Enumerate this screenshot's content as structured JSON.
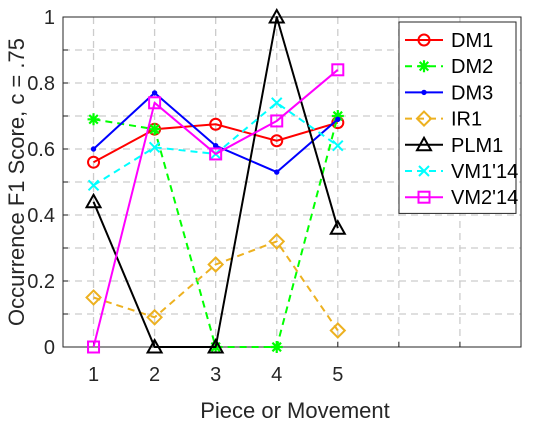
{
  "chart_data": {
    "type": "line",
    "title": "",
    "xlabel": "Piece or Movement",
    "ylabel": "Occurrence F1  Score, c = .75",
    "x": [
      1,
      2,
      3,
      4,
      5
    ],
    "xlim": [
      0.5,
      8
    ],
    "ylim": [
      0,
      1
    ],
    "xticks": [
      "1",
      "2",
      "3",
      "4",
      "5"
    ],
    "yticks": [
      "0",
      "0.2",
      "0.4",
      "0.6",
      "0.8",
      "1"
    ],
    "grid": true,
    "legend_position": "top-right",
    "series": [
      {
        "name": "DM1",
        "values": [
          0.56,
          0.66,
          0.675,
          0.625,
          0.68
        ],
        "color": "#ff0000",
        "dash": "solid",
        "marker": "circle"
      },
      {
        "name": "DM2",
        "values": [
          0.69,
          0.66,
          0.0,
          0.0,
          0.7
        ],
        "color": "#00ff00",
        "dash": "dashed",
        "marker": "asterisk"
      },
      {
        "name": "DM3",
        "values": [
          0.6,
          0.77,
          0.61,
          0.53,
          0.69
        ],
        "color": "#0000ff",
        "dash": "solid",
        "marker": "point"
      },
      {
        "name": "IR1",
        "values": [
          0.15,
          0.09,
          0.25,
          0.32,
          0.05
        ],
        "color": "#edb120",
        "dash": "dashed",
        "marker": "diamond"
      },
      {
        "name": "PLM1",
        "values": [
          0.44,
          0.0,
          0.0,
          1.0,
          0.36
        ],
        "color": "#000000",
        "dash": "solid",
        "marker": "triangle"
      },
      {
        "name": "VM1'14",
        "values": [
          0.49,
          0.605,
          0.585,
          0.74,
          0.61
        ],
        "color": "#00ffff",
        "dash": "dashed",
        "marker": "cross"
      },
      {
        "name": "VM2'14",
        "values": [
          0.0,
          0.74,
          0.585,
          0.685,
          0.84
        ],
        "color": "#ff00ff",
        "dash": "solid",
        "marker": "square"
      }
    ]
  }
}
